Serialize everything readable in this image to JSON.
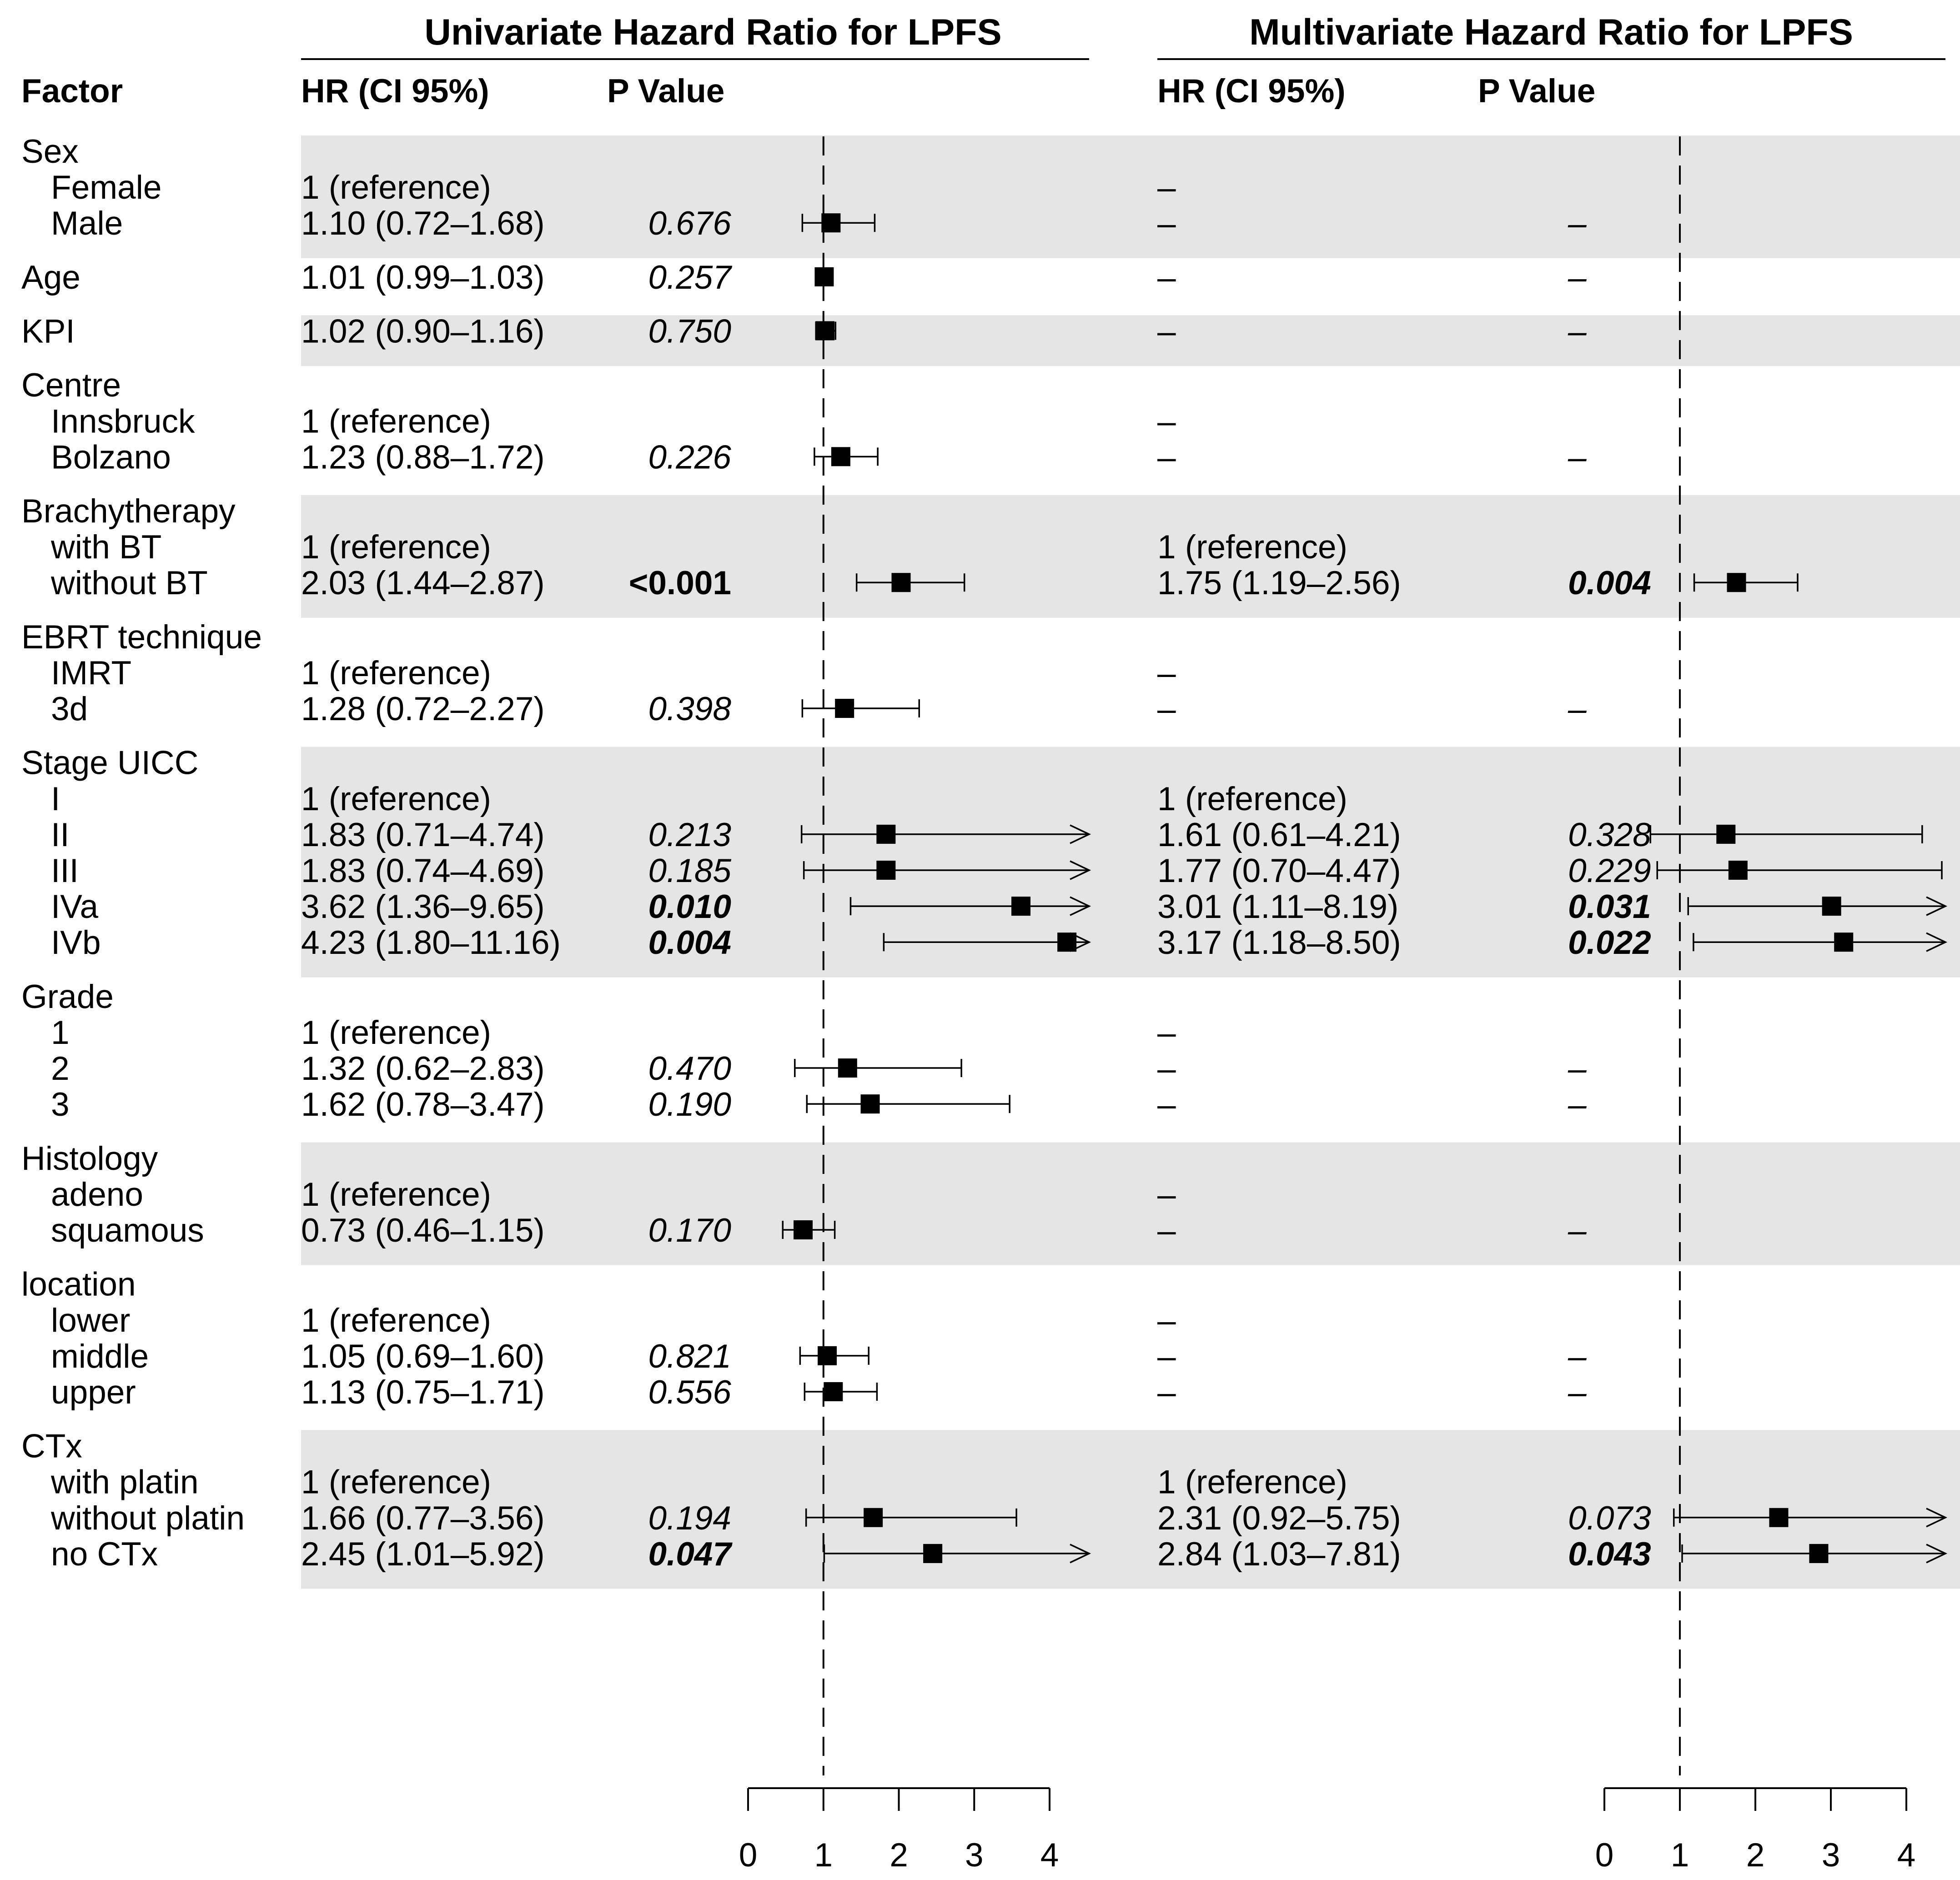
{
  "chart_data": {
    "type": "forest",
    "title_left": "Univariate Hazard Ratio for LPFS",
    "title_right": "Multivariate Hazard Ratio for LPFS",
    "columns": {
      "factor": "Factor",
      "hr_uni": "HR (CI 95%)",
      "p_uni": "P Value",
      "hr_multi": "HR (CI 95%)",
      "p_multi": "P Value"
    },
    "axis": {
      "xlim": [
        0,
        4
      ],
      "ticks": [
        "0",
        "1",
        "2",
        "3",
        "4"
      ],
      "reference_line": 1
    },
    "rows": [
      {
        "label": "Sex",
        "indent": 0
      },
      {
        "label": "Female",
        "indent": 1,
        "uni_text": "1 (reference)",
        "multi_text": "–"
      },
      {
        "label": "Male",
        "indent": 1,
        "uni_text": "1.10 (0.72–1.68)",
        "uni_p": "0.676",
        "uni_hr": 1.1,
        "uni_lo": 0.72,
        "uni_hi": 1.68,
        "multi_text": "–",
        "multi_p": "–"
      },
      {
        "label": "Age",
        "indent": 0,
        "uni_text": "1.01 (0.99–1.03)",
        "uni_p": "0.257",
        "uni_hr": 1.01,
        "uni_lo": 0.99,
        "uni_hi": 1.03,
        "multi_text": "–",
        "multi_p": "–"
      },
      {
        "label": "KPI",
        "indent": 0,
        "uni_text": "1.02 (0.90–1.16)",
        "uni_p": "0.750",
        "uni_hr": 1.02,
        "uni_lo": 0.9,
        "uni_hi": 1.16,
        "multi_text": "–",
        "multi_p": "–"
      },
      {
        "label": "Centre",
        "indent": 0
      },
      {
        "label": "Innsbruck",
        "indent": 1,
        "uni_text": "1 (reference)",
        "multi_text": "–"
      },
      {
        "label": "Bolzano",
        "indent": 1,
        "uni_text": "1.23 (0.88–1.72)",
        "uni_p": "0.226",
        "uni_hr": 1.23,
        "uni_lo": 0.88,
        "uni_hi": 1.72,
        "multi_text": "–",
        "multi_p": "–"
      },
      {
        "label": "Brachytherapy",
        "indent": 0
      },
      {
        "label": "with BT",
        "indent": 1,
        "uni_text": "1 (reference)",
        "multi_text": "1 (reference)"
      },
      {
        "label": "without BT",
        "indent": 1,
        "uni_text": "2.03 (1.44–2.87)",
        "uni_p": "<0.001",
        "uni_p_style": "bold",
        "uni_hr": 2.03,
        "uni_lo": 1.44,
        "uni_hi": 2.87,
        "multi_text": "1.75 (1.19–2.56)",
        "multi_p": "0.004",
        "multi_p_style": "bolditalic",
        "multi_hr": 1.75,
        "multi_lo": 1.19,
        "multi_hi": 2.56
      },
      {
        "label": "EBRT technique",
        "indent": 0
      },
      {
        "label": "IMRT",
        "indent": 1,
        "uni_text": "1 (reference)",
        "multi_text": "–"
      },
      {
        "label": "3d",
        "indent": 1,
        "uni_text": "1.28 (0.72–2.27)",
        "uni_p": "0.398",
        "uni_hr": 1.28,
        "uni_lo": 0.72,
        "uni_hi": 2.27,
        "multi_text": "–",
        "multi_p": "–"
      },
      {
        "label": "Stage UICC",
        "indent": 0
      },
      {
        "label": "I",
        "indent": 1,
        "uni_text": "1 (reference)",
        "multi_text": "1 (reference)"
      },
      {
        "label": "II",
        "indent": 1,
        "uni_text": "1.83 (0.71–4.74)",
        "uni_p": "0.213",
        "uni_hr": 1.83,
        "uni_lo": 0.71,
        "uni_hi": 4.74,
        "multi_text": "1.61 (0.61–4.21)",
        "multi_p": "0.328",
        "multi_hr": 1.61,
        "multi_lo": 0.61,
        "multi_hi": 4.21
      },
      {
        "label": "III",
        "indent": 1,
        "uni_text": "1.83 (0.74–4.69)",
        "uni_p": "0.185",
        "uni_hr": 1.83,
        "uni_lo": 0.74,
        "uni_hi": 4.69,
        "multi_text": "1.77 (0.70–4.47)",
        "multi_p": "0.229",
        "multi_hr": 1.77,
        "multi_lo": 0.7,
        "multi_hi": 4.47
      },
      {
        "label": "IVa",
        "indent": 1,
        "uni_text": "3.62 (1.36–9.65)",
        "uni_p": "0.010",
        "uni_p_style": "bolditalic",
        "uni_hr": 3.62,
        "uni_lo": 1.36,
        "uni_hi": 9.65,
        "multi_text": "3.01 (1.11–8.19)",
        "multi_p": "0.031",
        "multi_p_style": "bolditalic",
        "multi_hr": 3.01,
        "multi_lo": 1.11,
        "multi_hi": 8.19
      },
      {
        "label": "IVb",
        "indent": 1,
        "uni_text": "4.23 (1.80–11.16)",
        "uni_p": "0.004",
        "uni_p_style": "bolditalic",
        "uni_hr": 4.23,
        "uni_lo": 1.8,
        "uni_hi": 11.16,
        "multi_text": "3.17 (1.18–8.50)",
        "multi_p": "0.022",
        "multi_p_style": "bolditalic",
        "multi_hr": 3.17,
        "multi_lo": 1.18,
        "multi_hi": 8.5
      },
      {
        "label": "Grade",
        "indent": 0
      },
      {
        "label": "1",
        "indent": 1,
        "uni_text": "1 (reference)",
        "multi_text": "–"
      },
      {
        "label": "2",
        "indent": 1,
        "uni_text": "1.32 (0.62–2.83)",
        "uni_p": "0.470",
        "uni_hr": 1.32,
        "uni_lo": 0.62,
        "uni_hi": 2.83,
        "multi_text": "–",
        "multi_p": "–"
      },
      {
        "label": "3",
        "indent": 1,
        "uni_text": "1.62 (0.78–3.47)",
        "uni_p": "0.190",
        "uni_hr": 1.62,
        "uni_lo": 0.78,
        "uni_hi": 3.47,
        "multi_text": "–",
        "multi_p": "–"
      },
      {
        "label": "Histology",
        "indent": 0
      },
      {
        "label": "adeno",
        "indent": 1,
        "uni_text": "1 (reference)",
        "multi_text": "–"
      },
      {
        "label": "squamous",
        "indent": 1,
        "uni_text": "0.73 (0.46–1.15)",
        "uni_p": "0.170",
        "uni_hr": 0.73,
        "uni_lo": 0.46,
        "uni_hi": 1.15,
        "multi_text": "–",
        "multi_p": "–"
      },
      {
        "label": "location",
        "indent": 0
      },
      {
        "label": "lower",
        "indent": 1,
        "uni_text": "1 (reference)",
        "multi_text": "–"
      },
      {
        "label": "middle",
        "indent": 1,
        "uni_text": "1.05 (0.69–1.60)",
        "uni_p": "0.821",
        "uni_hr": 1.05,
        "uni_lo": 0.69,
        "uni_hi": 1.6,
        "multi_text": "–",
        "multi_p": "–"
      },
      {
        "label": "upper",
        "indent": 1,
        "uni_text": "1.13 (0.75–1.71)",
        "uni_p": "0.556",
        "uni_hr": 1.13,
        "uni_lo": 0.75,
        "uni_hi": 1.71,
        "multi_text": "–",
        "multi_p": "–"
      },
      {
        "label": "CTx",
        "indent": 0
      },
      {
        "label": "with platin",
        "indent": 1,
        "uni_text": "1 (reference)",
        "multi_text": "1 (reference)"
      },
      {
        "label": "without platin",
        "indent": 1,
        "uni_text": "1.66 (0.77–3.56)",
        "uni_p": "0.194",
        "uni_hr": 1.66,
        "uni_lo": 0.77,
        "uni_hi": 3.56,
        "multi_text": "2.31 (0.92–5.75)",
        "multi_p": "0.073",
        "multi_hr": 2.31,
        "multi_lo": 0.92,
        "multi_hi": 5.75
      },
      {
        "label": "no CTx",
        "indent": 1,
        "uni_text": "2.45 (1.01–5.92)",
        "uni_p": "0.047",
        "uni_p_style": "bolditalic",
        "uni_hr": 2.45,
        "uni_lo": 1.01,
        "uni_hi": 5.92,
        "multi_text": "2.84 (1.03–7.81)",
        "multi_p": "0.043",
        "multi_p_style": "bolditalic",
        "multi_hr": 2.84,
        "multi_lo": 1.03,
        "multi_hi": 7.81
      }
    ],
    "shaded_groups": [
      "Sex",
      "KPI",
      "Brachytherapy",
      "Stage UICC",
      "Histology",
      "CTx"
    ],
    "colors": {
      "shade": "#e5e5e5",
      "ink": "#000000"
    }
  }
}
